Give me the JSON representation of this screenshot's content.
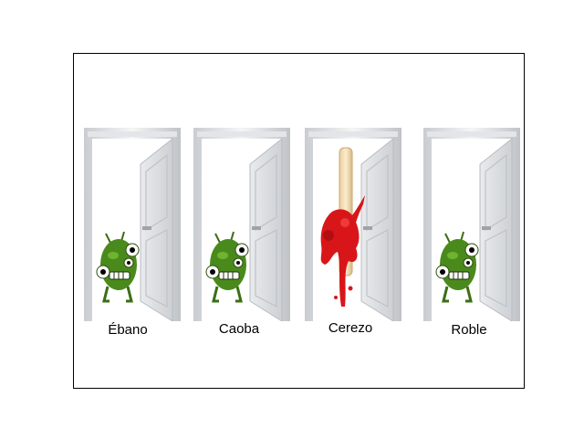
{
  "doors": [
    {
      "label": "Ébano",
      "content": "green-monster"
    },
    {
      "label": "Caoba",
      "content": "green-monster"
    },
    {
      "label": "Cerezo",
      "content": "red-splat-stick"
    },
    {
      "label": "Roble",
      "content": "green-monster"
    }
  ]
}
